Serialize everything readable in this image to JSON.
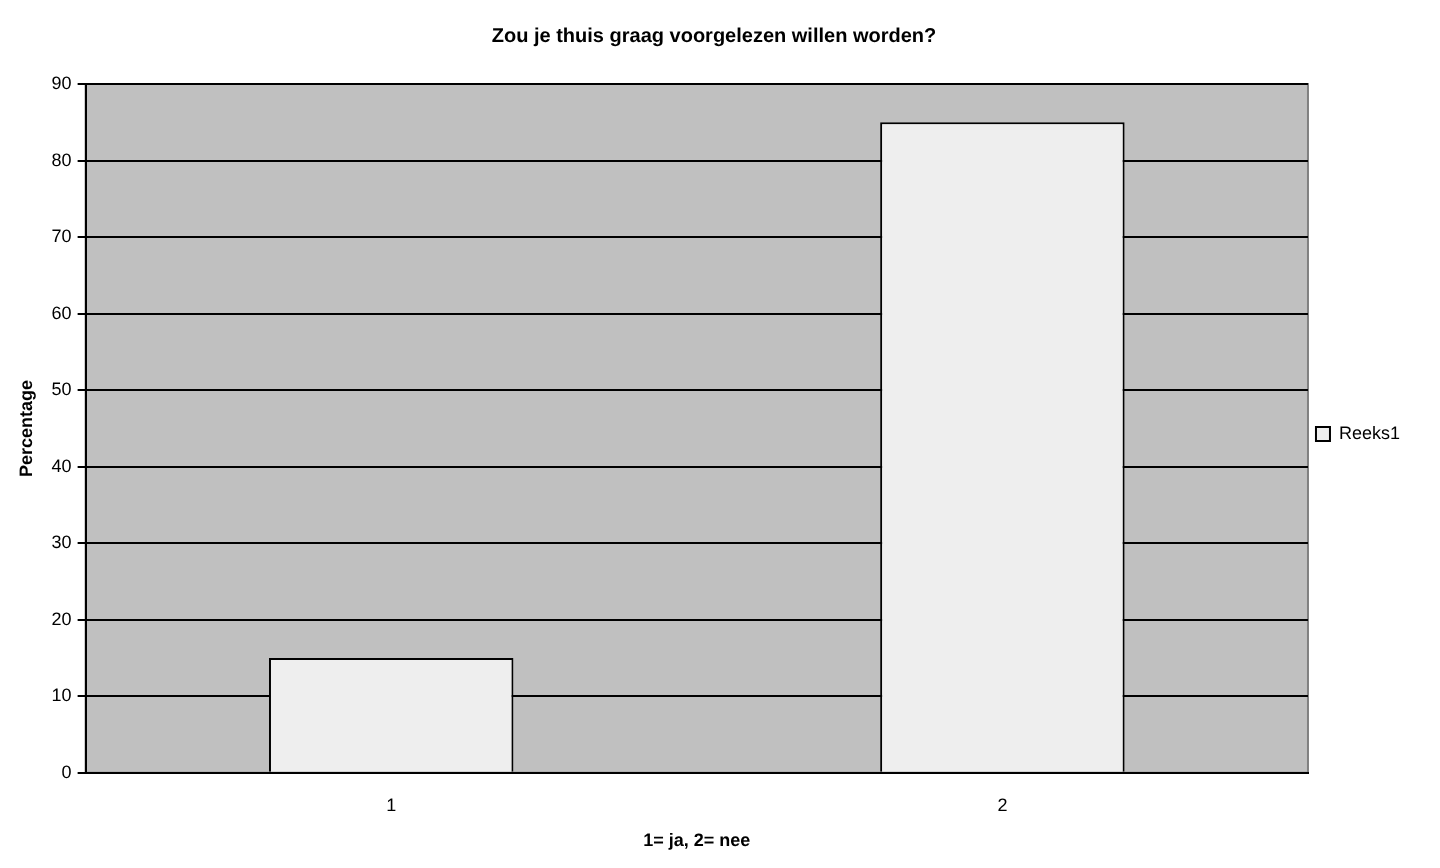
{
  "chart_data": {
    "type": "bar",
    "title": "Zou je thuis graag voorgelezen willen worden?",
    "xlabel": "1= ja, 2= nee",
    "ylabel": "Percentage",
    "categories": [
      "1",
      "2"
    ],
    "series": [
      {
        "name": "Reeks1",
        "color": "#eeeeee",
        "values": [
          15,
          85
        ]
      }
    ],
    "ylim": [
      0,
      90
    ],
    "yticks": [
      0,
      10,
      20,
      30,
      40,
      50,
      60,
      70,
      80,
      90
    ],
    "grid": "y",
    "legend": "right"
  }
}
